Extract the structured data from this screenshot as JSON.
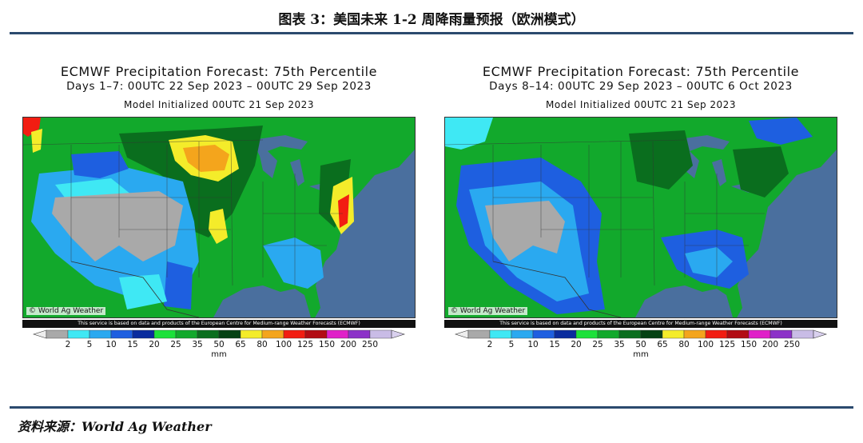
{
  "figure": {
    "title": "图表 3：美国未来 1-2 周降雨量预报（欧洲模式）",
    "source": "资料来源：World Ag Weather"
  },
  "panels": [
    {
      "title": "ECMWF Precipitation Forecast: 75th Percentile",
      "period": "Days 1–7: 00UTC 22 Sep 2023 – 00UTC 29 Sep 2023",
      "init": "Model Initialized 00UTC 21 Sep 2023",
      "credit": "© World Ag Weather",
      "disclaimer": "This service is based on data and products of the European Centre for Medium-range Weather Forecasts (ECMWF)"
    },
    {
      "title": "ECMWF Precipitation Forecast: 75th Percentile",
      "period": "Days 8–14: 00UTC 29 Sep 2023 – 00UTC 6 Oct 2023",
      "init": "Model Initialized 00UTC 21 Sep 2023",
      "credit": "© World Ag Weather",
      "disclaimer": "This service is based on data and products of the European Centre for Medium-range Weather Forecasts (ECMWF)"
    }
  ],
  "legend": {
    "unit": "mm",
    "ticks": [
      "2",
      "5",
      "10",
      "15",
      "20",
      "25",
      "35",
      "50",
      "65",
      "80",
      "100",
      "125",
      "150",
      "200",
      "250"
    ],
    "colors": [
      "#a9a9a9",
      "#3fe8f4",
      "#2aa9f0",
      "#1e5fe0",
      "#0a2c9e",
      "#1ce13a",
      "#12a92c",
      "#0a6e1e",
      "#054214",
      "#f4ec2a",
      "#f4a51c",
      "#f21d12",
      "#b20c14",
      "#e020c8",
      "#8c32c8",
      "#c9bce6"
    ]
  }
}
